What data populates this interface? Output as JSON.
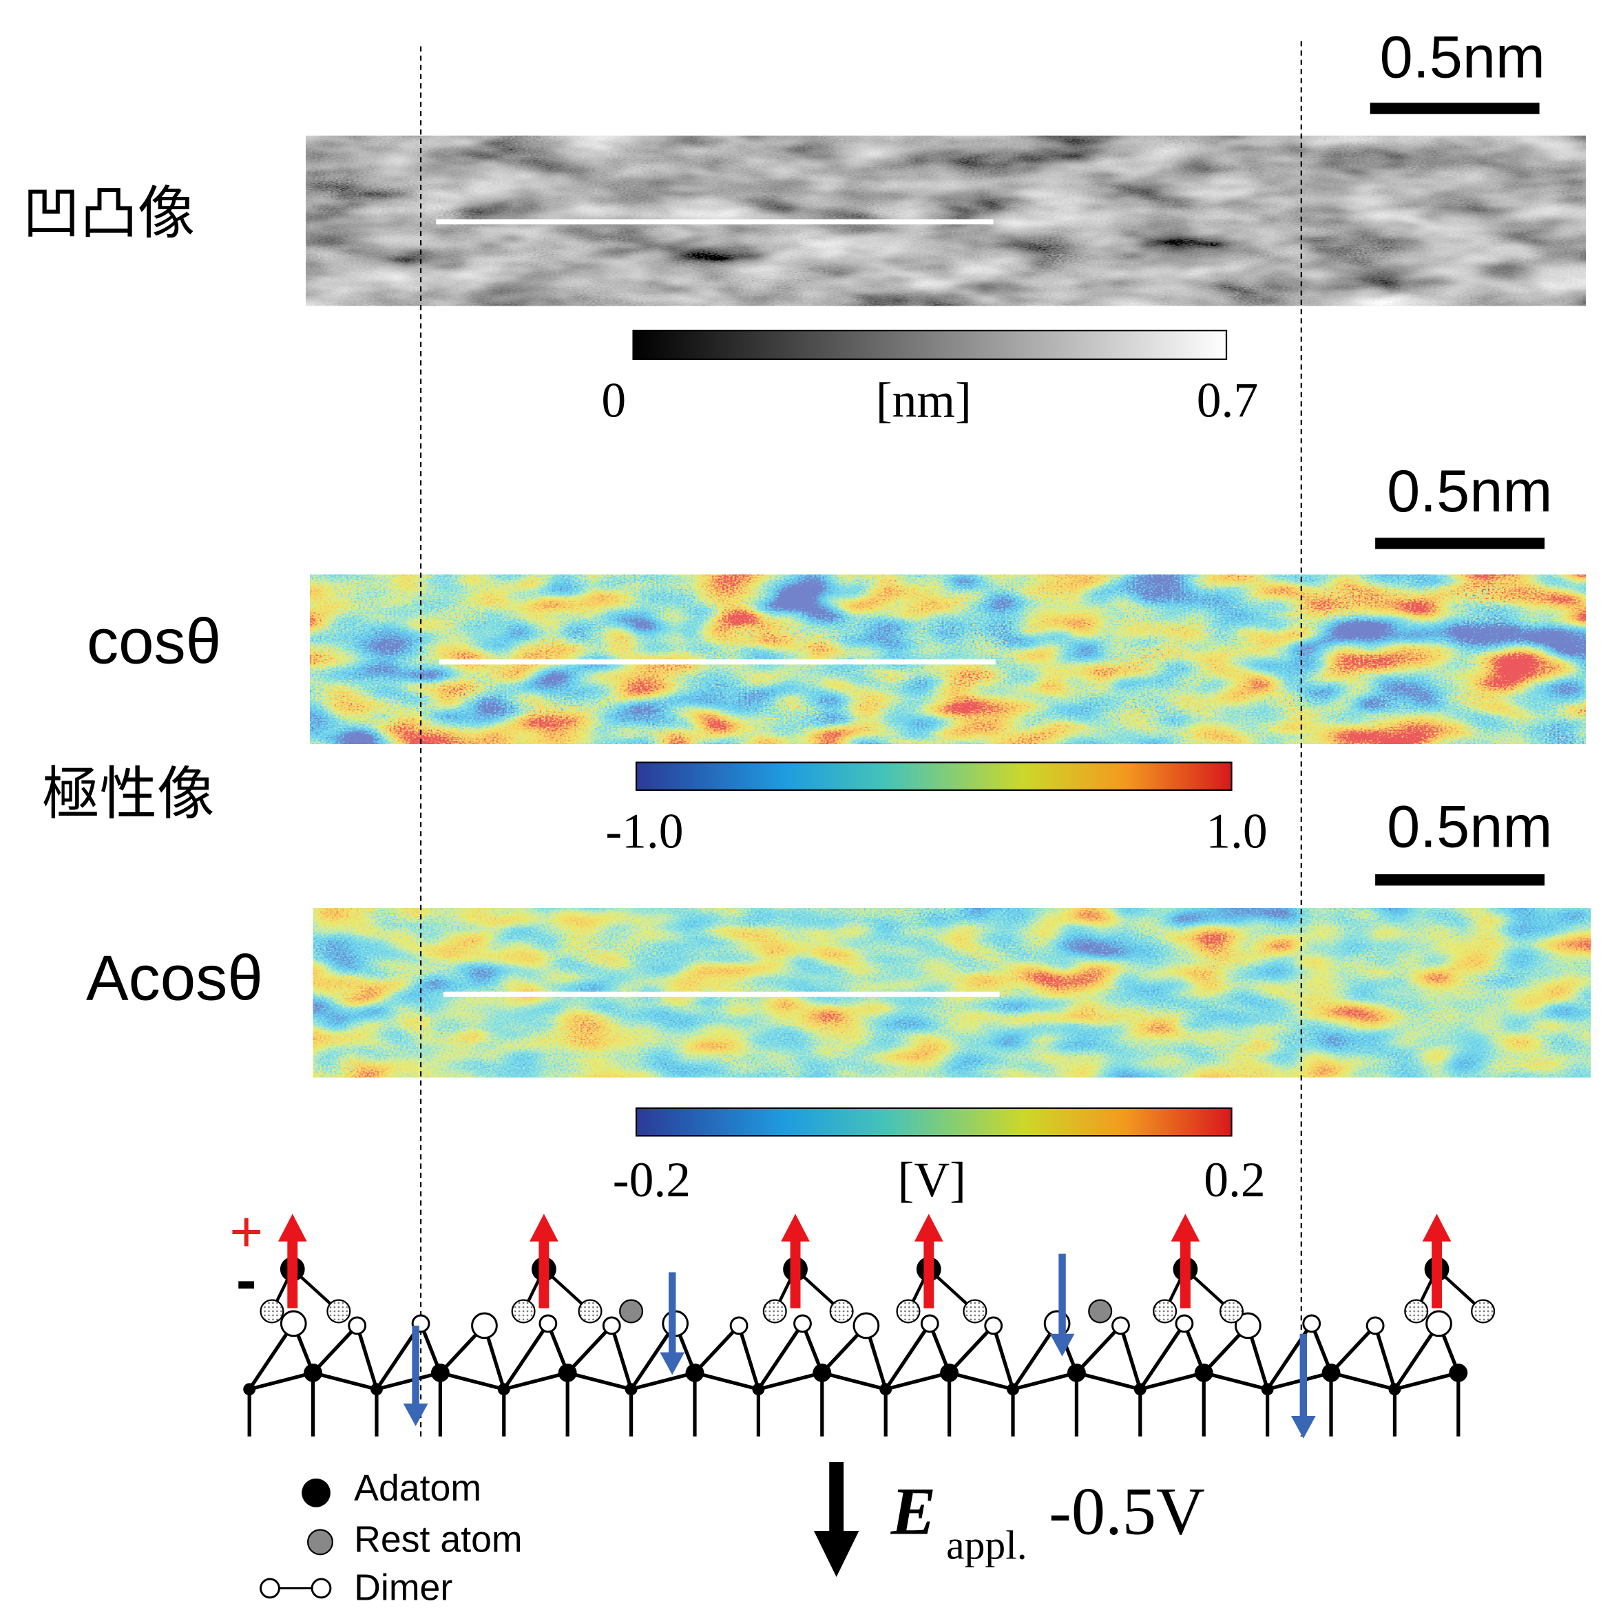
{
  "panels": [
    {
      "label": "凹凸像",
      "scale_bar": "0.5nm",
      "colorbar": {
        "min": "0",
        "unit": "[nm]",
        "max": "0.7"
      }
    },
    {
      "label": "cosθ",
      "scale_bar": "0.5nm",
      "colorbar": {
        "min": "-1.0",
        "max": "1.0"
      }
    },
    {
      "label": "Acosθ",
      "scale_bar": "0.5nm",
      "colorbar": {
        "min": "-0.2",
        "unit": "[V]",
        "max": "0.2"
      }
    }
  ],
  "group_label": "極性像",
  "model": {
    "plus": "+",
    "minus": "-",
    "legend": [
      "Adatom",
      "Rest atom",
      "Dimer"
    ],
    "field": {
      "symbol": "E",
      "subscript": "appl.",
      "value": "-0.5V"
    }
  }
}
